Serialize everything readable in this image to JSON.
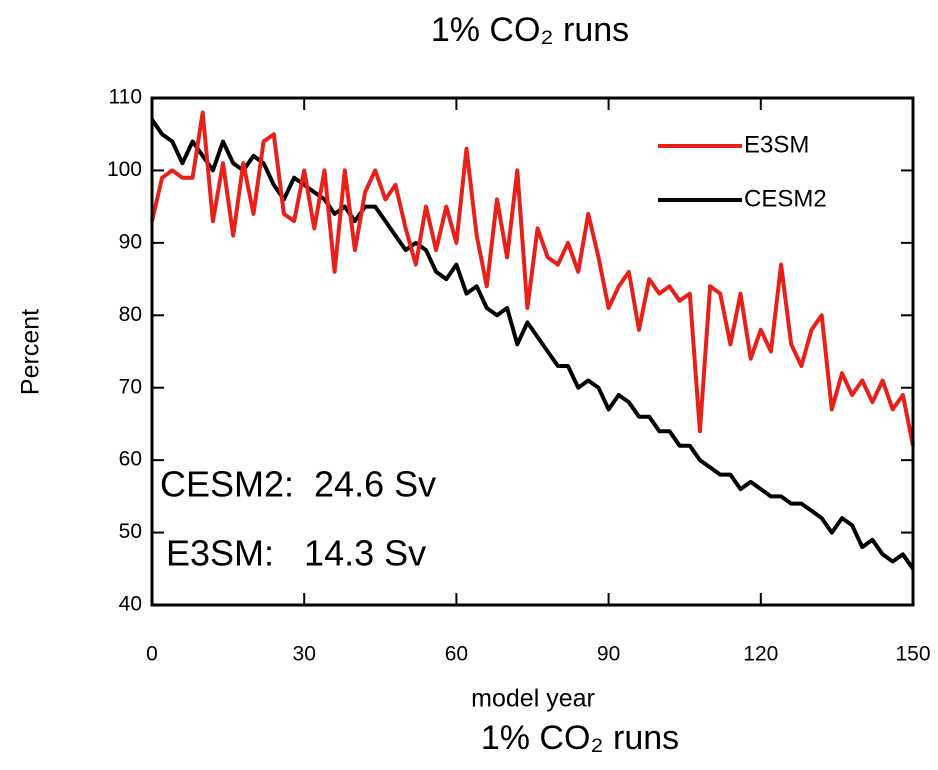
{
  "chart_data": {
    "type": "line",
    "title": "1% CO₂ runs",
    "bottom_title": "1% CO₂ runs",
    "x_label": "model year",
    "y_label": "Percent",
    "annotations": [
      "CESM2:  24.6 Sv",
      "E3SM:   14.3 Sv"
    ],
    "legend": "upper right",
    "xlim": [
      0,
      150
    ],
    "xticks": [
      0,
      30,
      60,
      90,
      120,
      150
    ],
    "ylim": [
      40,
      110
    ],
    "yticks": [
      40,
      50,
      60,
      70,
      80,
      90,
      100,
      110
    ],
    "x": [
      0,
      2,
      4,
      6,
      8,
      10,
      12,
      14,
      16,
      18,
      20,
      22,
      24,
      26,
      28,
      30,
      32,
      34,
      36,
      38,
      40,
      42,
      44,
      46,
      48,
      50,
      52,
      54,
      56,
      58,
      60,
      62,
      64,
      66,
      68,
      70,
      72,
      74,
      76,
      78,
      80,
      82,
      84,
      86,
      88,
      90,
      92,
      94,
      96,
      98,
      100,
      102,
      104,
      106,
      108,
      110,
      112,
      114,
      116,
      118,
      120,
      122,
      124,
      126,
      128,
      130,
      132,
      134,
      136,
      138,
      140,
      142,
      144,
      146,
      148,
      150
    ],
    "series": [
      {
        "name": "E3SM",
        "color": "#e8201a",
        "values": [
          93,
          99,
          100,
          99,
          99,
          108,
          93,
          101,
          91,
          101,
          94,
          104,
          105,
          94,
          93,
          100,
          92,
          100,
          86,
          100,
          89,
          97,
          100,
          96,
          98,
          92,
          87,
          95,
          89,
          95,
          90,
          103,
          91,
          84,
          96,
          88,
          100,
          81,
          92,
          88,
          87,
          90,
          86,
          94,
          88,
          81,
          84,
          86,
          78,
          85,
          83,
          84,
          82,
          83,
          64,
          84,
          83,
          76,
          83,
          74,
          78,
          75,
          87,
          76,
          73,
          78,
          80,
          67,
          72,
          69,
          71,
          68,
          71,
          67,
          69,
          62
        ]
      },
      {
        "name": "CESM2",
        "color": "#000000",
        "values": [
          107,
          105,
          104,
          101,
          104,
          102,
          100,
          104,
          101,
          100,
          102,
          101,
          98,
          96,
          99,
          98,
          97,
          96,
          94,
          95,
          93,
          95,
          95,
          93,
          91,
          89,
          90,
          89,
          86,
          85,
          87,
          83,
          84,
          81,
          80,
          81,
          76,
          79,
          77,
          75,
          73,
          73,
          70,
          71,
          70,
          67,
          69,
          68,
          66,
          66,
          64,
          64,
          62,
          62,
          60,
          59,
          58,
          58,
          56,
          57,
          56,
          55,
          55,
          54,
          54,
          53,
          52,
          50,
          52,
          51,
          48,
          49,
          47,
          46,
          47,
          45
        ]
      }
    ]
  }
}
